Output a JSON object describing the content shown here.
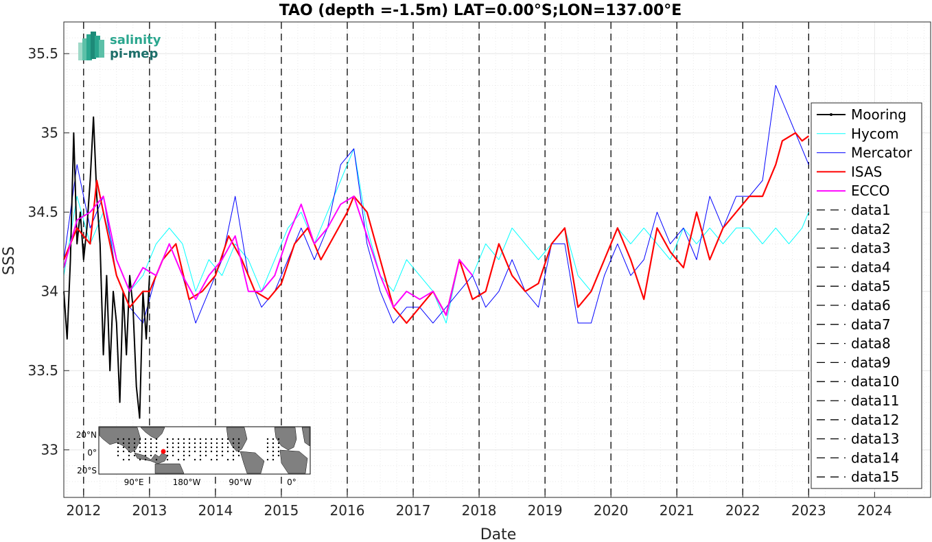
{
  "logo": {
    "line1": "salinity",
    "line2": "pi-mep"
  },
  "chart_data": {
    "type": "line",
    "title": "TAO (depth =-1.5m) LAT=0.00°S;LON=137.00°E",
    "xlabel": "Date",
    "ylabel": "SSS",
    "xlim": [
      2011.7,
      2024.85
    ],
    "ylim": [
      32.7,
      35.7
    ],
    "x_ticks": [
      2012,
      2013,
      2014,
      2015,
      2016,
      2017,
      2018,
      2019,
      2020,
      2021,
      2022,
      2023,
      2024
    ],
    "y_ticks": [
      33,
      33.5,
      34,
      34.5,
      35,
      35.5
    ],
    "grid": true,
    "legend_position": "right",
    "vertical_dashed_years": [
      2012,
      2013,
      2014,
      2015,
      2016,
      2017,
      2018,
      2019,
      2020,
      2021,
      2022,
      2023
    ],
    "series": [
      {
        "name": "Mooring",
        "color": "#000000",
        "x": [
          2011.7,
          2011.75,
          2011.8,
          2011.85,
          2011.9,
          2011.95,
          2012.0,
          2012.05,
          2012.1,
          2012.15,
          2012.2,
          2012.25,
          2012.3,
          2012.35,
          2012.4,
          2012.45,
          2012.5,
          2012.55,
          2012.6,
          2012.65,
          2012.7,
          2012.75,
          2012.8,
          2012.85,
          2012.9,
          2012.95,
          2013.0
        ],
        "y": [
          34.0,
          33.7,
          34.2,
          35.0,
          34.3,
          34.5,
          34.2,
          34.4,
          34.7,
          35.1,
          34.6,
          34.3,
          33.6,
          34.1,
          33.5,
          34.0,
          33.8,
          33.3,
          34.0,
          33.6,
          34.1,
          33.9,
          33.4,
          33.2,
          34.0,
          33.7,
          34.1
        ]
      },
      {
        "name": "Hycom",
        "color": "#00ffff",
        "x": [
          2011.7,
          2011.9,
          2012.1,
          2012.3,
          2012.5,
          2012.7,
          2012.9,
          2013.1,
          2013.3,
          2013.5,
          2013.7,
          2013.9,
          2014.1,
          2014.3,
          2014.5,
          2014.7,
          2014.9,
          2015.1,
          2015.3,
          2015.5,
          2015.7,
          2015.9,
          2016.1,
          2016.3,
          2016.5,
          2016.7,
          2016.9,
          2017.1,
          2017.3,
          2017.5,
          2017.7,
          2017.9,
          2018.1,
          2018.3,
          2018.5,
          2018.7,
          2018.9,
          2019.1,
          2019.3,
          2019.5,
          2019.7,
          2019.9,
          2020.1,
          2020.3,
          2020.5,
          2020.7,
          2020.9,
          2021.1,
          2021.3,
          2021.5,
          2021.7,
          2021.9,
          2022.1,
          2022.3,
          2022.5,
          2022.7,
          2022.9,
          2023.0
        ],
        "y": [
          34.1,
          34.6,
          34.3,
          34.5,
          34.2,
          34.0,
          34.1,
          34.3,
          34.4,
          34.3,
          34.0,
          34.2,
          34.1,
          34.3,
          34.2,
          34.0,
          34.2,
          34.4,
          34.5,
          34.3,
          34.5,
          34.7,
          34.9,
          34.4,
          34.1,
          34.0,
          34.2,
          34.1,
          34.0,
          33.8,
          34.2,
          34.1,
          34.3,
          34.2,
          34.4,
          34.3,
          34.2,
          34.3,
          34.4,
          34.1,
          34.0,
          34.2,
          34.4,
          34.3,
          34.4,
          34.3,
          34.2,
          34.4,
          34.3,
          34.4,
          34.3,
          34.4,
          34.4,
          34.3,
          34.4,
          34.3,
          34.4,
          34.5
        ]
      },
      {
        "name": "Mercator",
        "color": "#0000ff",
        "x": [
          2011.7,
          2011.9,
          2012.1,
          2012.3,
          2012.5,
          2012.7,
          2012.9,
          2013.1,
          2013.3,
          2013.5,
          2013.7,
          2013.9,
          2014.1,
          2014.3,
          2014.5,
          2014.7,
          2014.9,
          2015.1,
          2015.3,
          2015.5,
          2015.7,
          2015.9,
          2016.1,
          2016.3,
          2016.5,
          2016.7,
          2016.9,
          2017.1,
          2017.3,
          2017.5,
          2017.7,
          2017.9,
          2018.1,
          2018.3,
          2018.5,
          2018.7,
          2018.9,
          2019.1,
          2019.3,
          2019.5,
          2019.7,
          2019.9,
          2020.1,
          2020.3,
          2020.5,
          2020.7,
          2020.9,
          2021.1,
          2021.3,
          2021.5,
          2021.7,
          2021.9,
          2022.1,
          2022.3,
          2022.5,
          2022.7,
          2022.9,
          2023.0
        ],
        "y": [
          34.2,
          34.8,
          34.4,
          34.6,
          34.1,
          33.9,
          33.8,
          34.1,
          34.3,
          34.1,
          33.8,
          34.0,
          34.2,
          34.6,
          34.1,
          33.9,
          34.0,
          34.2,
          34.4,
          34.2,
          34.4,
          34.8,
          34.9,
          34.3,
          34.0,
          33.8,
          33.9,
          33.9,
          33.8,
          33.9,
          34.0,
          34.1,
          33.9,
          34.0,
          34.2,
          34.0,
          33.9,
          34.3,
          34.3,
          33.8,
          33.8,
          34.1,
          34.3,
          34.1,
          34.2,
          34.5,
          34.3,
          34.4,
          34.2,
          34.6,
          34.4,
          34.6,
          34.6,
          34.7,
          35.3,
          35.1,
          34.9,
          34.8
        ]
      },
      {
        "name": "ISAS",
        "color": "#ff0000",
        "x": [
          2011.7,
          2011.9,
          2012.1,
          2012.2,
          2012.3,
          2012.5,
          2012.7,
          2012.9,
          2013.0,
          2013.2,
          2013.4,
          2013.6,
          2013.8,
          2014.0,
          2014.2,
          2014.4,
          2014.6,
          2014.8,
          2015.0,
          2015.2,
          2015.4,
          2015.6,
          2015.8,
          2016.0,
          2016.1,
          2016.3,
          2016.5,
          2016.7,
          2016.9,
          2017.1,
          2017.3,
          2017.5,
          2017.7,
          2017.9,
          2018.1,
          2018.3,
          2018.5,
          2018.7,
          2018.9,
          2019.1,
          2019.3,
          2019.5,
          2019.7,
          2019.9,
          2020.1,
          2020.3,
          2020.5,
          2020.7,
          2020.9,
          2021.1,
          2021.3,
          2021.5,
          2021.7,
          2021.9,
          2022.1,
          2022.3,
          2022.5,
          2022.6,
          2022.8,
          2022.9,
          2023.0
        ],
        "y": [
          34.2,
          34.4,
          34.3,
          34.7,
          34.5,
          34.1,
          33.9,
          34.0,
          34.0,
          34.2,
          34.3,
          33.95,
          34.0,
          34.1,
          34.35,
          34.2,
          34.0,
          33.95,
          34.05,
          34.3,
          34.4,
          34.2,
          34.35,
          34.5,
          34.6,
          34.5,
          34.2,
          33.9,
          33.8,
          33.9,
          34.0,
          33.85,
          34.2,
          33.95,
          34.0,
          34.3,
          34.1,
          34.0,
          34.05,
          34.3,
          34.4,
          33.9,
          34.0,
          34.2,
          34.4,
          34.2,
          33.95,
          34.4,
          34.25,
          34.15,
          34.5,
          34.2,
          34.4,
          34.5,
          34.6,
          34.6,
          34.8,
          34.95,
          35.0,
          34.95,
          34.98
        ]
      },
      {
        "name": "ECCO",
        "color": "#ff00ff",
        "x": [
          2011.7,
          2011.9,
          2012.1,
          2012.3,
          2012.5,
          2012.7,
          2012.9,
          2013.1,
          2013.3,
          2013.5,
          2013.7,
          2013.9,
          2014.1,
          2014.3,
          2014.5,
          2014.7,
          2014.9,
          2015.1,
          2015.3,
          2015.5,
          2015.7,
          2015.9,
          2016.1,
          2016.3,
          2016.5,
          2016.7,
          2016.9,
          2017.1,
          2017.3,
          2017.5,
          2017.7,
          2017.9
        ],
        "y": [
          34.15,
          34.45,
          34.5,
          34.6,
          34.2,
          34.0,
          34.15,
          34.1,
          34.3,
          34.1,
          33.95,
          34.1,
          34.2,
          34.35,
          34.0,
          34.0,
          34.1,
          34.35,
          34.55,
          34.3,
          34.4,
          34.55,
          34.6,
          34.35,
          34.1,
          33.9,
          34.0,
          33.95,
          34.0,
          33.85,
          34.2,
          34.1
        ]
      },
      {
        "name": "data1",
        "color": "#000000"
      },
      {
        "name": "data2",
        "color": "#000000"
      },
      {
        "name": "data3",
        "color": "#000000"
      },
      {
        "name": "data4",
        "color": "#000000"
      },
      {
        "name": "data5",
        "color": "#000000"
      },
      {
        "name": "data6",
        "color": "#000000"
      },
      {
        "name": "data7",
        "color": "#000000"
      },
      {
        "name": "data8",
        "color": "#000000"
      },
      {
        "name": "data9",
        "color": "#000000"
      },
      {
        "name": "data10",
        "color": "#000000"
      },
      {
        "name": "data11",
        "color": "#000000"
      },
      {
        "name": "data12",
        "color": "#000000"
      },
      {
        "name": "data13",
        "color": "#000000"
      },
      {
        "name": "data14",
        "color": "#000000"
      },
      {
        "name": "data15",
        "color": "#000000"
      }
    ]
  },
  "inset_map": {
    "lat_labels": [
      "20°N",
      "0°",
      "20°S"
    ],
    "lon_labels": [
      "90°E",
      "180°W",
      "90°W",
      "0°"
    ],
    "marker_color": "#ff0000"
  }
}
